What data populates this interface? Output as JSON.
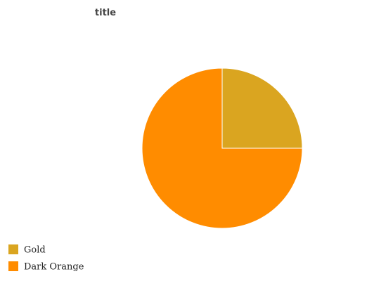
{
  "chart_data": {
    "type": "pie",
    "title": "title",
    "categories": [
      "Gold",
      "Dark Orange"
    ],
    "values": [
      25,
      75
    ],
    "colors": [
      "#DAA520",
      "#FF8C00"
    ],
    "start_angle_deg": 0,
    "direction": "clockwise",
    "legend_position": "bottom-left"
  }
}
